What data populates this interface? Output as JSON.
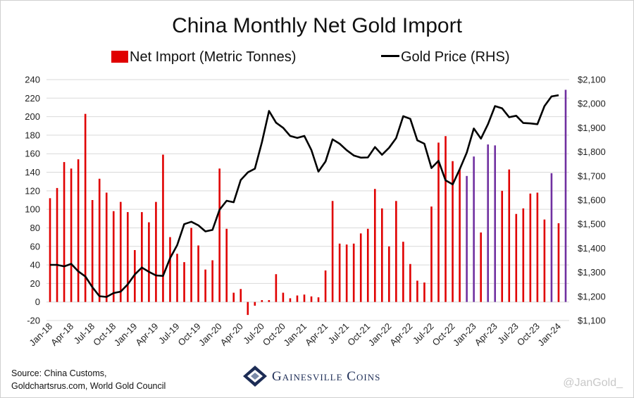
{
  "title": "China Monthly Net Gold Import",
  "legend": {
    "bars": "Net Import (Metric Tonnes)",
    "line": "Gold Price (RHS)"
  },
  "source_line1": "Source: China Customs,",
  "source_line2": "Goldchartsrus.com, World Gold Council",
  "brand": "Gainesville Coins",
  "handle": "@JanGold_",
  "chart_data": {
    "type": "bar+line",
    "title": "China Monthly Net Gold Import",
    "ylim": [
      -20,
      240
    ],
    "ylim_right": [
      1100,
      2100
    ],
    "y_ticks": [
      -20,
      0,
      20,
      40,
      60,
      80,
      100,
      120,
      140,
      160,
      180,
      200,
      220,
      240
    ],
    "y_ticks_right": [
      "$1,100",
      "$1,200",
      "$1,300",
      "$1,400",
      "$1,500",
      "$1,600",
      "$1,700",
      "$1,800",
      "$1,900",
      "$2,000",
      "$2,100"
    ],
    "x_tick_labels": [
      "Jan-18",
      "Apr-18",
      "Jul-18",
      "Oct-18",
      "Jan-19",
      "Apr-19",
      "Jul-19",
      "Oct-19",
      "Jan-20",
      "Apr-20",
      "Jul-20",
      "Oct-20",
      "Jan-21",
      "Apr-21",
      "Jul-21",
      "Oct-21",
      "Jan-22",
      "Apr-22",
      "Jul-22",
      "Oct-22",
      "Jan-23",
      "Apr-23",
      "Jul-23",
      "Oct-23",
      "Jan-24"
    ],
    "grid": true,
    "colors": {
      "bar": "#e00000",
      "bar_estimate": "#7030a0",
      "line": "#000000"
    },
    "series": [
      {
        "name": "Net Import (Metric Tonnes)",
        "kind": "bar",
        "axis": "left",
        "start": "Jan-18",
        "values": [
          112,
          123,
          151,
          144,
          154,
          203,
          110,
          133,
          118,
          98,
          108,
          97,
          56,
          97,
          86,
          108,
          159,
          70,
          52,
          43,
          80,
          61,
          35,
          45,
          144,
          79,
          10,
          14,
          -14,
          -4,
          2,
          2,
          30,
          10,
          4,
          7,
          8,
          6,
          5,
          34,
          109,
          63,
          62,
          63,
          74,
          79,
          122,
          101,
          60,
          109,
          65,
          41,
          23,
          21,
          103,
          172,
          179,
          152,
          143,
          136,
          157,
          75,
          170,
          169,
          120,
          143,
          95,
          101,
          117,
          118,
          89,
          139,
          85,
          229
        ],
        "estimate_flags": [
          0,
          0,
          0,
          0,
          0,
          0,
          0,
          0,
          0,
          0,
          0,
          0,
          0,
          0,
          0,
          0,
          0,
          0,
          0,
          0,
          0,
          0,
          0,
          0,
          0,
          0,
          0,
          0,
          0,
          0,
          0,
          0,
          0,
          0,
          0,
          0,
          0,
          0,
          0,
          0,
          0,
          0,
          0,
          0,
          0,
          0,
          0,
          0,
          0,
          0,
          0,
          0,
          0,
          0,
          0,
          0,
          0,
          0,
          0,
          1,
          1,
          0,
          1,
          1,
          0,
          0,
          0,
          0,
          0,
          0,
          0,
          1,
          0,
          1
        ]
      },
      {
        "name": "Gold Price (RHS)",
        "kind": "line",
        "axis": "right",
        "start": "Jan-18",
        "values": [
          1331,
          1331,
          1325,
          1335,
          1304,
          1283,
          1238,
          1201,
          1198,
          1214,
          1220,
          1250,
          1291,
          1320,
          1302,
          1287,
          1285,
          1359,
          1413,
          1500,
          1510,
          1495,
          1470,
          1476,
          1560,
          1597,
          1591,
          1683,
          1715,
          1730,
          1840,
          1970,
          1921,
          1900,
          1866,
          1858,
          1866,
          1808,
          1718,
          1760,
          1852,
          1834,
          1807,
          1785,
          1776,
          1777,
          1820,
          1788,
          1817,
          1857,
          1948,
          1937,
          1848,
          1834,
          1733,
          1763,
          1682,
          1665,
          1728,
          1797,
          1897,
          1855,
          1915,
          1990,
          1981,
          1944,
          1950,
          1920,
          1918,
          1915,
          1990,
          2030,
          2035
        ]
      }
    ]
  }
}
